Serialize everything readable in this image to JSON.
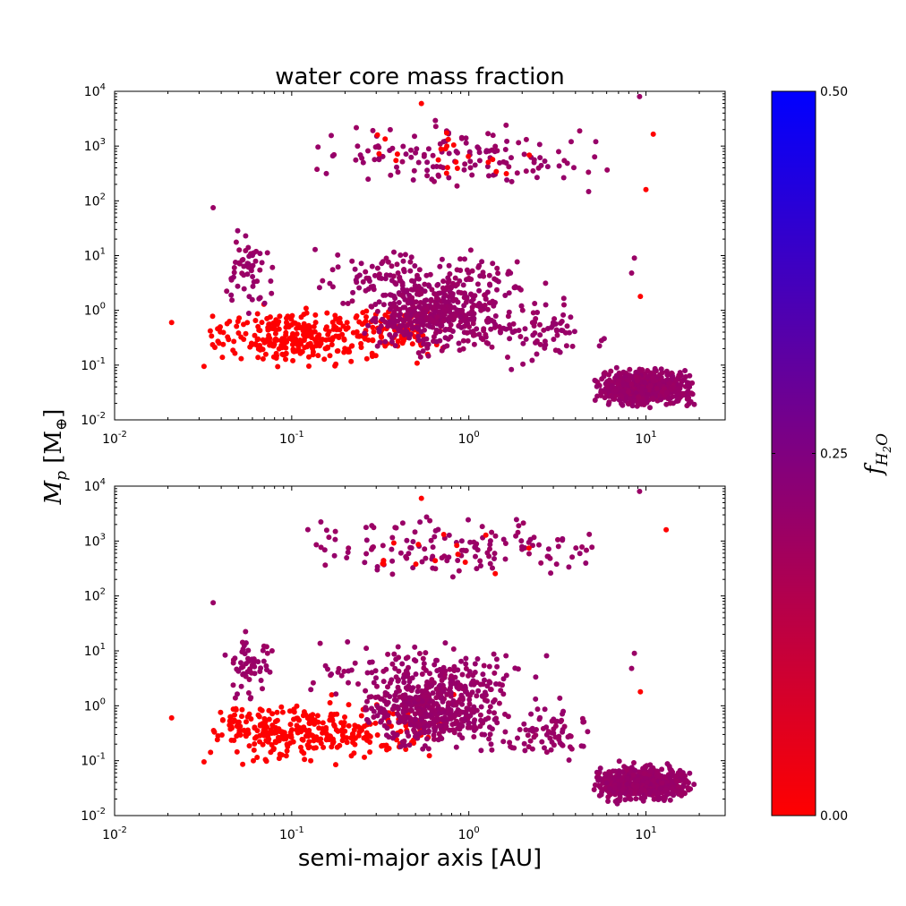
{
  "chart_data": {
    "type": "scatter",
    "title": "water core mass fraction",
    "xlabel": "semi-major axis [AU]",
    "ylabel": "M_p [M_⊕]",
    "xscale": "log",
    "yscale": "log",
    "xlim": [
      0.01,
      28
    ],
    "ylim": [
      0.01,
      10000
    ],
    "xticks": [
      {
        "value": 0.01,
        "base": "10",
        "exp": "-2"
      },
      {
        "value": 0.1,
        "base": "10",
        "exp": "-1"
      },
      {
        "value": 1,
        "base": "10",
        "exp": "0"
      },
      {
        "value": 10,
        "base": "10",
        "exp": "1"
      }
    ],
    "yticks": [
      {
        "value": 0.01,
        "base": "10",
        "exp": "-2"
      },
      {
        "value": 0.1,
        "base": "10",
        "exp": "-1"
      },
      {
        "value": 1,
        "base": "10",
        "exp": "0"
      },
      {
        "value": 10,
        "base": "10",
        "exp": "1"
      },
      {
        "value": 100,
        "base": "10",
        "exp": "2"
      },
      {
        "value": 1000,
        "base": "10",
        "exp": "3"
      },
      {
        "value": 10000,
        "base": "10",
        "exp": "4"
      }
    ],
    "colorbar": {
      "label": "f_H2O",
      "min": 0.0,
      "max": 0.5,
      "ticks": [
        "0.00",
        "0.25",
        "0.50"
      ],
      "colors": [
        "#ff0000",
        "#800080",
        "#0000ff"
      ]
    },
    "panels": [
      {
        "name": "top",
        "clusters": [
          {
            "seed": 11,
            "n": 260,
            "a": [
              0.03,
              0.32
            ],
            "m": [
              0.07,
              1.6
            ],
            "f": 0.0
          },
          {
            "seed": 12,
            "n": 90,
            "a": [
              0.15,
              0.9
            ],
            "m": [
              0.08,
              2.0
            ],
            "f": 0.0
          },
          {
            "seed": 13,
            "n": 420,
            "a": [
              0.25,
              1.6
            ],
            "m": [
              0.12,
              6.0
            ],
            "f": 0.2
          },
          {
            "seed": 14,
            "n": 140,
            "a": [
              0.12,
              2.8
            ],
            "m": [
              0.8,
              18.0
            ],
            "f": 0.2
          },
          {
            "seed": 15,
            "n": 140,
            "a": [
              0.1,
              7.0
            ],
            "m": [
              120.0,
              3800.0
            ],
            "f": 0.2
          },
          {
            "seed": 16,
            "n": 55,
            "a": [
              0.04,
              0.08
            ],
            "m": [
              0.6,
              40.0
            ],
            "f": 0.2
          },
          {
            "seed": 17,
            "n": 80,
            "a": [
              1.2,
              6.0
            ],
            "m": [
              0.06,
              2.5
            ],
            "f": 0.2
          },
          {
            "seed": 18,
            "n": 620,
            "a": [
              5.0,
              19.0
            ],
            "m": [
              0.015,
              0.1
            ],
            "f": 0.2
          },
          {
            "seed": 19,
            "n": 22,
            "a": [
              0.2,
              3.0
            ],
            "m": [
              150.0,
              3000.0
            ],
            "f": 0.0
          }
        ],
        "points": [
          {
            "a": 0.021,
            "m": 0.6,
            "f": 0.0
          },
          {
            "a": 0.032,
            "m": 0.095,
            "f": 0.0
          },
          {
            "a": 0.54,
            "m": 6000,
            "f": 0.0
          },
          {
            "a": 11,
            "m": 1650,
            "f": 0.0
          },
          {
            "a": 10,
            "m": 160,
            "f": 0.0
          },
          {
            "a": 9.3,
            "m": 1.8,
            "f": 0.0
          },
          {
            "a": 9.2,
            "m": 8000,
            "f": 0.2
          },
          {
            "a": 0.036,
            "m": 75,
            "f": 0.2
          },
          {
            "a": 8.6,
            "m": 9,
            "f": 0.2
          },
          {
            "a": 8.3,
            "m": 4.8,
            "f": 0.2
          }
        ]
      },
      {
        "name": "bottom",
        "clusters": [
          {
            "seed": 21,
            "n": 260,
            "a": [
              0.03,
              0.32
            ],
            "m": [
              0.07,
              1.6
            ],
            "f": 0.0
          },
          {
            "seed": 22,
            "n": 70,
            "a": [
              0.15,
              0.9
            ],
            "m": [
              0.08,
              2.0
            ],
            "f": 0.0
          },
          {
            "seed": 23,
            "n": 440,
            "a": [
              0.25,
              1.6
            ],
            "m": [
              0.12,
              6.0
            ],
            "f": 0.2
          },
          {
            "seed": 24,
            "n": 140,
            "a": [
              0.12,
              2.8
            ],
            "m": [
              0.8,
              18.0
            ],
            "f": 0.2
          },
          {
            "seed": 25,
            "n": 140,
            "a": [
              0.1,
              7.0
            ],
            "m": [
              120.0,
              3800.0
            ],
            "f": 0.2
          },
          {
            "seed": 26,
            "n": 55,
            "a": [
              0.04,
              0.08
            ],
            "m": [
              0.6,
              40.0
            ],
            "f": 0.2
          },
          {
            "seed": 27,
            "n": 80,
            "a": [
              1.2,
              6.0
            ],
            "m": [
              0.06,
              2.5
            ],
            "f": 0.2
          },
          {
            "seed": 28,
            "n": 620,
            "a": [
              5.0,
              19.0
            ],
            "m": [
              0.015,
              0.1
            ],
            "f": 0.2
          },
          {
            "seed": 29,
            "n": 14,
            "a": [
              0.2,
              3.0
            ],
            "m": [
              150.0,
              3000.0
            ],
            "f": 0.0
          }
        ],
        "points": [
          {
            "a": 0.021,
            "m": 0.6,
            "f": 0.0
          },
          {
            "a": 0.032,
            "m": 0.095,
            "f": 0.0
          },
          {
            "a": 0.54,
            "m": 6000,
            "f": 0.0
          },
          {
            "a": 13,
            "m": 1600,
            "f": 0.0
          },
          {
            "a": 9.3,
            "m": 1.8,
            "f": 0.0
          },
          {
            "a": 9.2,
            "m": 8000,
            "f": 0.2
          },
          {
            "a": 0.036,
            "m": 75,
            "f": 0.2
          },
          {
            "a": 8.6,
            "m": 9,
            "f": 0.2
          },
          {
            "a": 8.3,
            "m": 4.8,
            "f": 0.2
          }
        ]
      }
    ]
  }
}
